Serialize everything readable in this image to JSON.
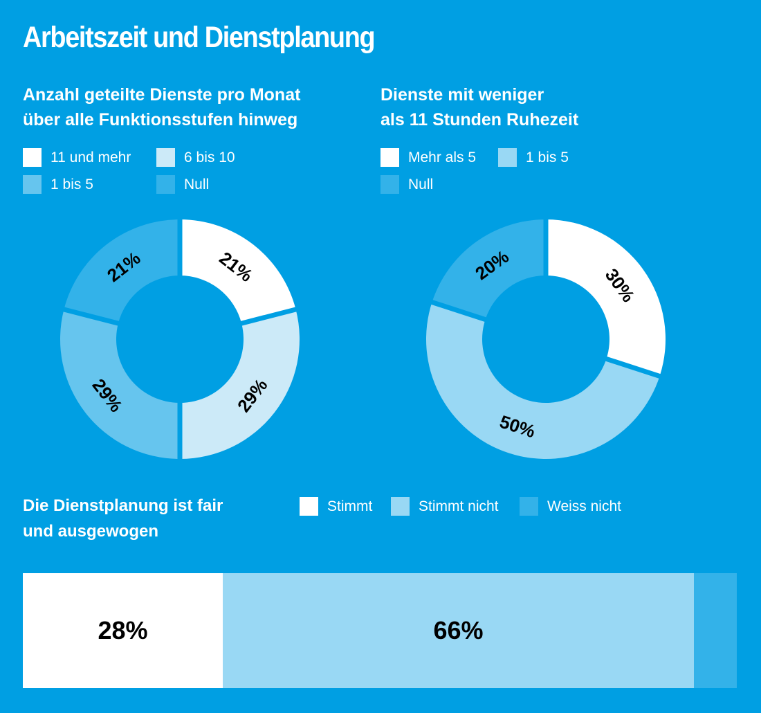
{
  "title": "Arbeitszeit und Dienstplanung",
  "colors": {
    "background": "#009fe3",
    "white": "#ffffff",
    "very_light": "#cceaf8",
    "light": "#99d8f4",
    "mid": "#66c5ee",
    "muted": "#33b2e9",
    "label": "#000000"
  },
  "chart_data": [
    {
      "type": "pie",
      "variant": "donut",
      "title": "Anzahl geteilte Dienste pro Monat über alle Funktionsstufen hinweg",
      "title_lines": [
        "Anzahl geteilte Dienste pro Monat",
        "über alle Funktionsstufen hinweg"
      ],
      "legend": [
        "11 und mehr",
        "6 bis 10",
        "1 bis 5",
        "Null"
      ],
      "categories": [
        "11 und mehr",
        "6 bis 10",
        "1 bis 5",
        "Null"
      ],
      "values": [
        21,
        29,
        29,
        21
      ],
      "labels": [
        "21%",
        "29%",
        "29%",
        "21%"
      ],
      "colors": [
        "#ffffff",
        "#cceaf8",
        "#66c5ee",
        "#33b2e9"
      ],
      "start": "top",
      "direction": "clockwise"
    },
    {
      "type": "pie",
      "variant": "donut",
      "title": "Dienste mit weniger als 11 Stunden Ruhezeit",
      "title_lines": [
        "Dienste mit weniger",
        "als 11 Stunden Ruhezeit"
      ],
      "legend": [
        "Mehr als 5",
        "1 bis 5",
        "Null"
      ],
      "categories": [
        "Mehr als 5",
        "1 bis 5",
        "Null"
      ],
      "values": [
        30,
        50,
        20
      ],
      "labels": [
        "30%",
        "50%",
        "20%"
      ],
      "colors": [
        "#ffffff",
        "#99d8f4",
        "#33b2e9"
      ],
      "start": "top",
      "direction": "clockwise"
    },
    {
      "type": "bar",
      "variant": "stacked-horizontal-100",
      "title": "Die Dienstplanung ist fair und ausgewogen",
      "title_lines": [
        "Die Dienstplanung ist fair",
        "und ausgewogen"
      ],
      "legend": [
        "Stimmt",
        "Stimmt nicht",
        "Weiss nicht"
      ],
      "categories": [
        "Stimmt",
        "Stimmt nicht",
        "Weiss nicht"
      ],
      "values": [
        28,
        66,
        6
      ],
      "labels": [
        "28%",
        "66%",
        ""
      ],
      "colors": [
        "#ffffff",
        "#99d8f4",
        "#33b2e9"
      ]
    }
  ]
}
